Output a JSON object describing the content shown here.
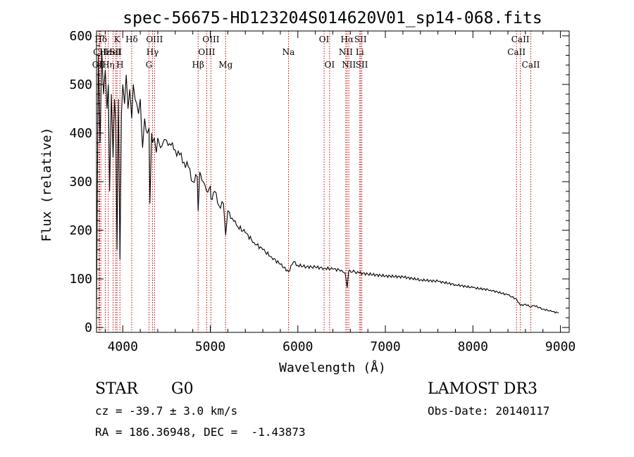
{
  "chart_data": {
    "type": "line",
    "title": "spec-56675-HD123204S014620V01_sp14-068.fits",
    "xlabel": "Wavelength (Å)",
    "ylabel": "Flux (relative)",
    "xlim": [
      3700,
      9100
    ],
    "ylim": [
      -10,
      610
    ],
    "xticks": [
      4000,
      5000,
      6000,
      7000,
      8000,
      9000
    ],
    "xtick_labels": [
      "4000",
      "5000",
      "6000",
      "7000",
      "8000",
      "9000"
    ],
    "yticks": [
      0,
      100,
      200,
      300,
      400,
      500,
      600
    ],
    "ytick_labels": [
      "0",
      "100",
      "200",
      "300",
      "400",
      "500",
      "600"
    ],
    "series": [
      {
        "name": "flux",
        "x": [
          3700,
          3720,
          3740,
          3760,
          3780,
          3800,
          3820,
          3835,
          3850,
          3870,
          3889,
          3905,
          3920,
          3934,
          3950,
          3968,
          3985,
          4000,
          4020,
          4040,
          4060,
          4080,
          4102,
          4120,
          4140,
          4160,
          4180,
          4200,
          4226,
          4250,
          4280,
          4300,
          4310,
          4330,
          4340,
          4360,
          4383,
          4400,
          4430,
          4460,
          4500,
          4550,
          4600,
          4650,
          4700,
          4750,
          4800,
          4850,
          4861,
          4880,
          4920,
          4957,
          5000,
          5007,
          5050,
          5100,
          5150,
          5175,
          5200,
          5250,
          5300,
          5400,
          5500,
          5600,
          5700,
          5800,
          5893,
          5950,
          6000,
          6100,
          6200,
          6300,
          6400,
          6500,
          6540,
          6563,
          6580,
          6650,
          6700,
          6800,
          7000,
          7200,
          7400,
          7600,
          7800,
          8000,
          8200,
          8400,
          8500,
          8542,
          8600,
          8662,
          8700,
          8800,
          8900,
          8980
        ],
        "y": [
          30,
          560,
          380,
          570,
          480,
          530,
          450,
          500,
          280,
          480,
          350,
          470,
          420,
          160,
          470,
          140,
          440,
          500,
          460,
          520,
          450,
          490,
          430,
          500,
          470,
          460,
          440,
          470,
          370,
          430,
          400,
          410,
          255,
          400,
          380,
          390,
          360,
          390,
          370,
          380,
          385,
          375,
          365,
          355,
          340,
          330,
          300,
          310,
          240,
          320,
          300,
          280,
          290,
          265,
          280,
          250,
          255,
          190,
          240,
          225,
          210,
          195,
          175,
          160,
          145,
          130,
          115,
          135,
          128,
          125,
          124,
          122,
          120,
          118,
          112,
          82,
          115,
          115,
          112,
          110,
          106,
          104,
          98,
          95,
          88,
          82,
          77,
          67,
          58,
          45,
          48,
          42,
          45,
          38,
          33,
          30
        ]
      }
    ],
    "lines": [
      {
        "label": "Hδ",
        "wavelength": 3750,
        "row": 1
      },
      {
        "label": "OII",
        "wavelength": 3727,
        "row": 3
      },
      {
        "label": "CII",
        "wavelength": 3736,
        "row": 2
      },
      {
        "label": "Hε",
        "wavelength": 3800,
        "row": 2
      },
      {
        "label": "Hη",
        "wavelength": 3835,
        "row": 3
      },
      {
        "label": "K",
        "wavelength": 3934,
        "row": 1
      },
      {
        "label": "HeI",
        "wavelength": 3889,
        "row": 2
      },
      {
        "label": "SII",
        "wavelength": 3920,
        "row": 2
      },
      {
        "label": "H",
        "wavelength": 3968,
        "row": 3
      },
      {
        "label": "Hδ",
        "wavelength": 4102,
        "row": 1
      },
      {
        "label": "OIII",
        "wavelength": 4363,
        "row": 1
      },
      {
        "label": "Hγ",
        "wavelength": 4340,
        "row": 2
      },
      {
        "label": "G",
        "wavelength": 4300,
        "row": 3
      },
      {
        "label": "Hβ",
        "wavelength": 4861,
        "row": 3
      },
      {
        "label": "OIII",
        "wavelength": 5007,
        "row": 1
      },
      {
        "label": "OIII",
        "wavelength": 4959,
        "row": 2
      },
      {
        "label": "Mg",
        "wavelength": 5175,
        "row": 3
      },
      {
        "label": "Na",
        "wavelength": 5893,
        "row": 2
      },
      {
        "label": "OI",
        "wavelength": 6300,
        "row": 1
      },
      {
        "label": "OI",
        "wavelength": 6363,
        "row": 3
      },
      {
        "label": "Hα",
        "wavelength": 6563,
        "row": 1
      },
      {
        "label": "SII",
        "wavelength": 6716,
        "row": 1
      },
      {
        "label": "NII",
        "wavelength": 6548,
        "row": 2
      },
      {
        "label": "Li",
        "wavelength": 6708,
        "row": 2
      },
      {
        "label": "NII",
        "wavelength": 6583,
        "row": 3
      },
      {
        "label": "SII",
        "wavelength": 6731,
        "row": 3
      },
      {
        "label": "CaII",
        "wavelength": 8542,
        "row": 1
      },
      {
        "label": "CaII",
        "wavelength": 8498,
        "row": 2
      },
      {
        "label": "CaII",
        "wavelength": 8662,
        "row": 3
      }
    ]
  },
  "info": {
    "object_class": "STAR",
    "subclass": "G0",
    "survey": "LAMOST DR3",
    "cz": "cz = -39.7 ± 3.0 km/s",
    "obs_date": "Obs-Date: 20140117",
    "coords": "RA = 186.36948, DEC =  -1.43873"
  },
  "colors": {
    "spectrum": "#000000",
    "line_markers": "#cc0000",
    "axes": "#000000"
  }
}
